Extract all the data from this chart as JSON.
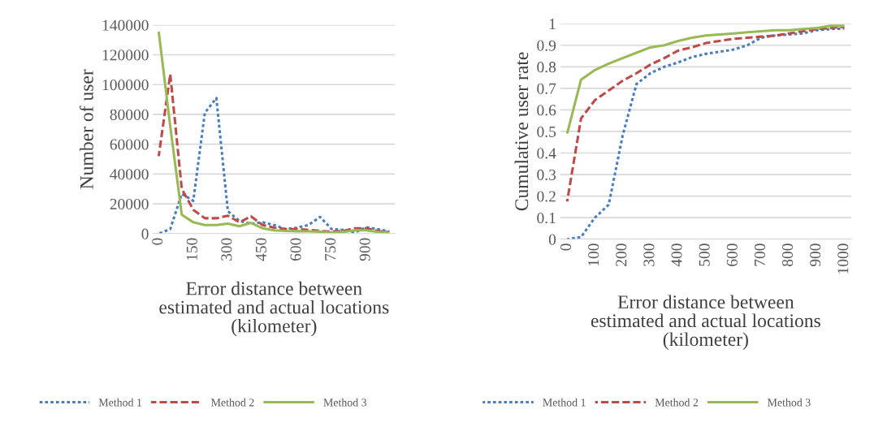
{
  "chart_data": [
    {
      "type": "line",
      "xlabel": "Error distance between\nestimated and actual locations\n(kilometer)",
      "ylabel": "Number of user",
      "x": [
        0,
        50,
        100,
        150,
        200,
        250,
        300,
        350,
        400,
        450,
        500,
        550,
        600,
        650,
        700,
        750,
        800,
        850,
        900,
        950,
        1000
      ],
      "xlim": [
        -25,
        1025
      ],
      "xticks": [
        0,
        150,
        300,
        450,
        600,
        750,
        900
      ],
      "ylim": [
        0,
        140000
      ],
      "yticks": [
        0,
        20000,
        40000,
        60000,
        80000,
        100000,
        120000,
        140000
      ],
      "grid": "y",
      "legend": "bottom",
      "series": [
        {
          "name": "Method 1",
          "color": "#4a7ebb",
          "line_style": "dotted",
          "values": [
            0,
            3000,
            26700,
            22000,
            81000,
            91000,
            15000,
            8500,
            6700,
            7600,
            5800,
            3000,
            4000,
            5800,
            11200,
            3000,
            2500,
            700,
            4300,
            3000,
            1300
          ]
        },
        {
          "name": "Method 2",
          "color": "#be4b48",
          "line_style": "dashed",
          "values": [
            52000,
            107000,
            30000,
            16000,
            10300,
            10300,
            12000,
            7600,
            11600,
            5800,
            4000,
            3000,
            3000,
            2500,
            1800,
            1300,
            1800,
            3600,
            3600,
            1800,
            900
          ]
        },
        {
          "name": "Method 3",
          "color": "#98b954",
          "line_style": "solid",
          "values": [
            135500,
            72000,
            12700,
            7600,
            5800,
            5800,
            6700,
            4900,
            7200,
            3600,
            2200,
            1800,
            1600,
            1500,
            1300,
            700,
            1100,
            2200,
            2200,
            1100,
            500
          ]
        }
      ]
    },
    {
      "type": "line",
      "xlabel": "Error distance between\nestimated and actual locations\n(kilometer)",
      "ylabel": "Cumulative user rate",
      "x": [
        0,
        50,
        100,
        150,
        200,
        250,
        300,
        350,
        400,
        450,
        500,
        550,
        600,
        650,
        700,
        750,
        800,
        850,
        900,
        950,
        1000
      ],
      "xlim": [
        -25,
        1025
      ],
      "xticks": [
        0,
        100,
        200,
        300,
        400,
        500,
        600,
        700,
        800,
        900,
        1000
      ],
      "ylim": [
        0,
        1
      ],
      "yticks": [
        0,
        0.1,
        0.2,
        0.3,
        0.4,
        0.5,
        0.6,
        0.7,
        0.8,
        0.9,
        1
      ],
      "grid": "y",
      "legend": "bottom",
      "series": [
        {
          "name": "Method 1",
          "color": "#4a7ebb",
          "line_style": "dotted",
          "values": [
            0,
            0.01,
            0.1,
            0.16,
            0.48,
            0.72,
            0.77,
            0.8,
            0.82,
            0.845,
            0.86,
            0.87,
            0.88,
            0.9,
            0.935,
            0.945,
            0.95,
            0.955,
            0.97,
            0.975,
            0.978
          ]
        },
        {
          "name": "Method 2",
          "color": "#be4b48",
          "line_style": "dashed",
          "values": [
            0.175,
            0.56,
            0.645,
            0.69,
            0.735,
            0.77,
            0.81,
            0.84,
            0.875,
            0.89,
            0.91,
            0.92,
            0.93,
            0.935,
            0.94,
            0.945,
            0.955,
            0.965,
            0.975,
            0.98,
            0.985
          ]
        },
        {
          "name": "Method 3",
          "color": "#98b954",
          "line_style": "solid",
          "values": [
            0.49,
            0.74,
            0.785,
            0.815,
            0.84,
            0.865,
            0.89,
            0.9,
            0.92,
            0.935,
            0.945,
            0.95,
            0.955,
            0.96,
            0.965,
            0.97,
            0.97,
            0.975,
            0.98,
            0.99,
            0.99
          ]
        }
      ]
    }
  ]
}
